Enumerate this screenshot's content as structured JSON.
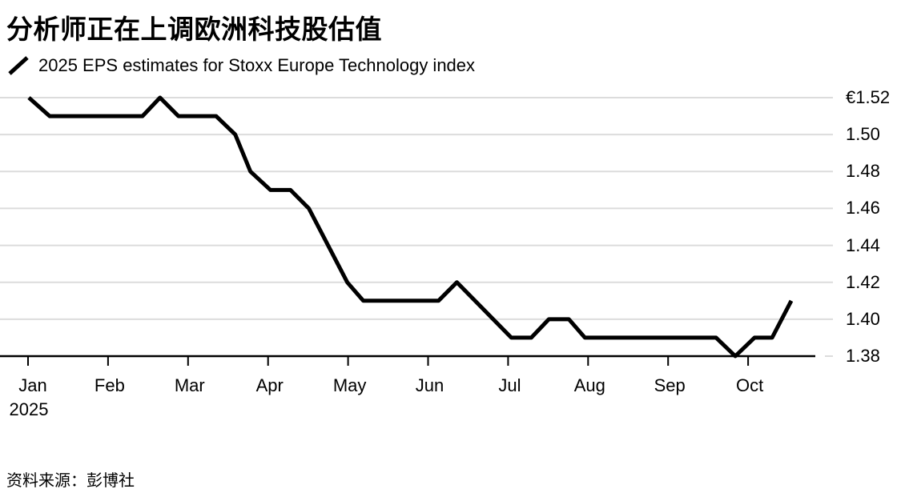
{
  "header": {
    "title": "分析师正在上调欧洲科技股估值",
    "legend_label": "2025 EPS estimates for Stoxx Europe Technology index"
  },
  "source": {
    "label": "资料来源：彭博社"
  },
  "colors": {
    "background": "#ffffff",
    "text": "#000000",
    "line": "#000000",
    "gridline": "#dcdcdc",
    "axis": "#000000"
  },
  "chart_data": {
    "type": "line",
    "title": "分析师正在上调欧洲科技股估值",
    "legend": "2025 EPS estimates for Stoxx Europe Technology index",
    "legend_position": "top-left",
    "grid": "horizontal-only",
    "currency_unit": "EUR",
    "x_axis": {
      "tick_labels": [
        "Jan",
        "Feb",
        "Mar",
        "Apr",
        "May",
        "Jun",
        "Jul",
        "Aug",
        "Sep",
        "Oct"
      ],
      "year_label": "2025",
      "note": "x positions in series are months since Jan 1 2025 (0 = Jan 1, 1 = Feb 1, ...)"
    },
    "y_axis": {
      "tick_labels": [
        "€1.52",
        "1.50",
        "1.48",
        "1.46",
        "1.44",
        "1.42",
        "1.40",
        "1.38"
      ],
      "tick_values": [
        1.52,
        1.5,
        1.48,
        1.46,
        1.44,
        1.42,
        1.4,
        1.38
      ],
      "ylim": [
        1.38,
        1.52
      ],
      "side": "right"
    },
    "series": [
      {
        "name": "2025 EPS estimates for Stoxx Europe Technology index",
        "points": [
          [
            0.01,
            1.52
          ],
          [
            0.27,
            1.51
          ],
          [
            1.43,
            1.51
          ],
          [
            1.65,
            1.52
          ],
          [
            1.88,
            1.51
          ],
          [
            2.35,
            1.51
          ],
          [
            2.59,
            1.5
          ],
          [
            2.78,
            1.48
          ],
          [
            3.03,
            1.47
          ],
          [
            3.28,
            1.47
          ],
          [
            3.51,
            1.46
          ],
          [
            3.99,
            1.42
          ],
          [
            4.19,
            1.41
          ],
          [
            5.13,
            1.41
          ],
          [
            5.36,
            1.42
          ],
          [
            6.04,
            1.39
          ],
          [
            6.29,
            1.39
          ],
          [
            6.51,
            1.4
          ],
          [
            6.76,
            1.4
          ],
          [
            6.96,
            1.39
          ],
          [
            8.6,
            1.39
          ],
          [
            8.84,
            1.38
          ],
          [
            9.08,
            1.39
          ],
          [
            9.3,
            1.39
          ],
          [
            9.54,
            1.41
          ]
        ]
      }
    ]
  }
}
